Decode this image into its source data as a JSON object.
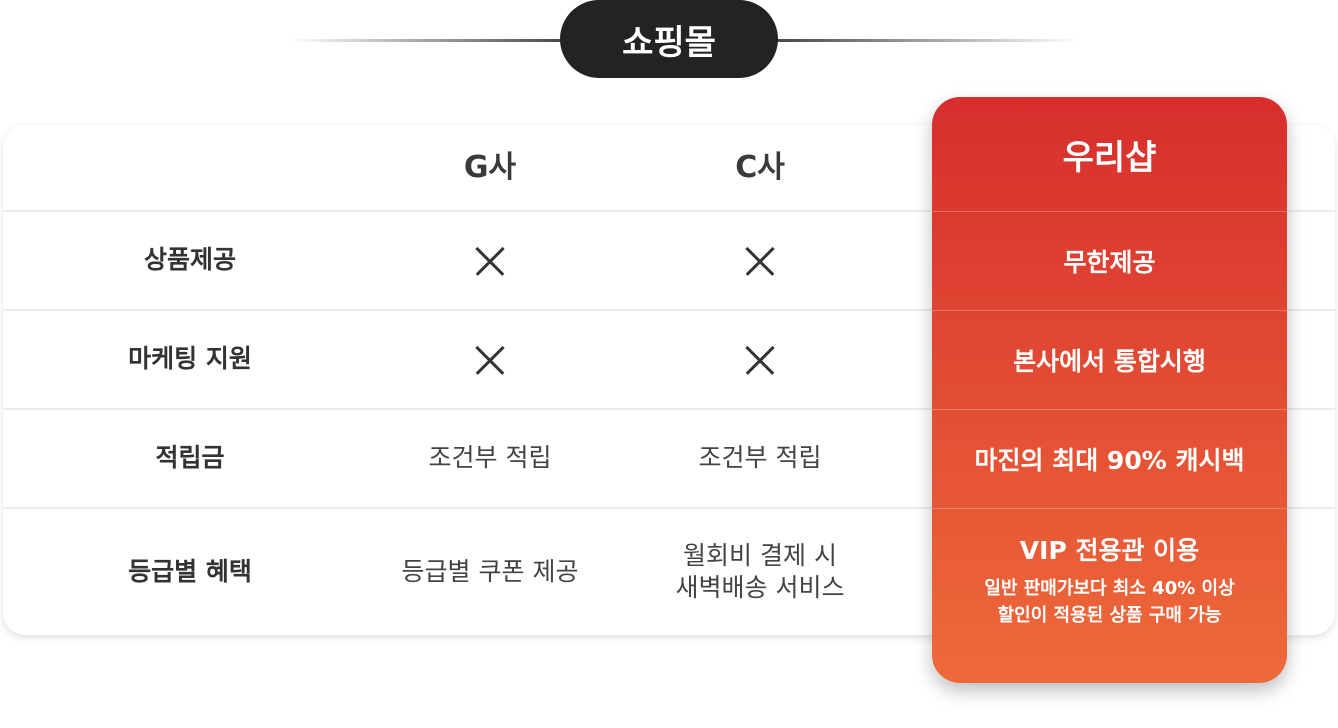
{
  "title": "쇼핑몰",
  "columns": {
    "label": "",
    "g": "G사",
    "c": "C사",
    "ours": "우리샵"
  },
  "rows": [
    {
      "label": "상품제공",
      "g": "x-icon",
      "c": "x-icon",
      "ours": "무한제공"
    },
    {
      "label": "마케팅 지원",
      "g": "x-icon",
      "c": "x-icon",
      "ours": "본사에서 통합시행"
    },
    {
      "label": "적립금",
      "g": "조건부 적립",
      "c": "조건부 적립",
      "ours": "마진의 최대 90% 캐시백"
    },
    {
      "label": "등급별 혜택",
      "g": "등급별 쿠폰 제공",
      "c_line1": "월회비 결제 시",
      "c_line2": "새벽배송 서비스",
      "ours": "VIP 전용관 이용",
      "ours_sub1": "일반 판매가보다 최소 40% 이상",
      "ours_sub2": "할인이 적용된 상품 구매 가능"
    }
  ],
  "colors": {
    "highlight_top": "#d72e2d",
    "highlight_bottom": "#ee6a3a",
    "pill": "#232323"
  }
}
